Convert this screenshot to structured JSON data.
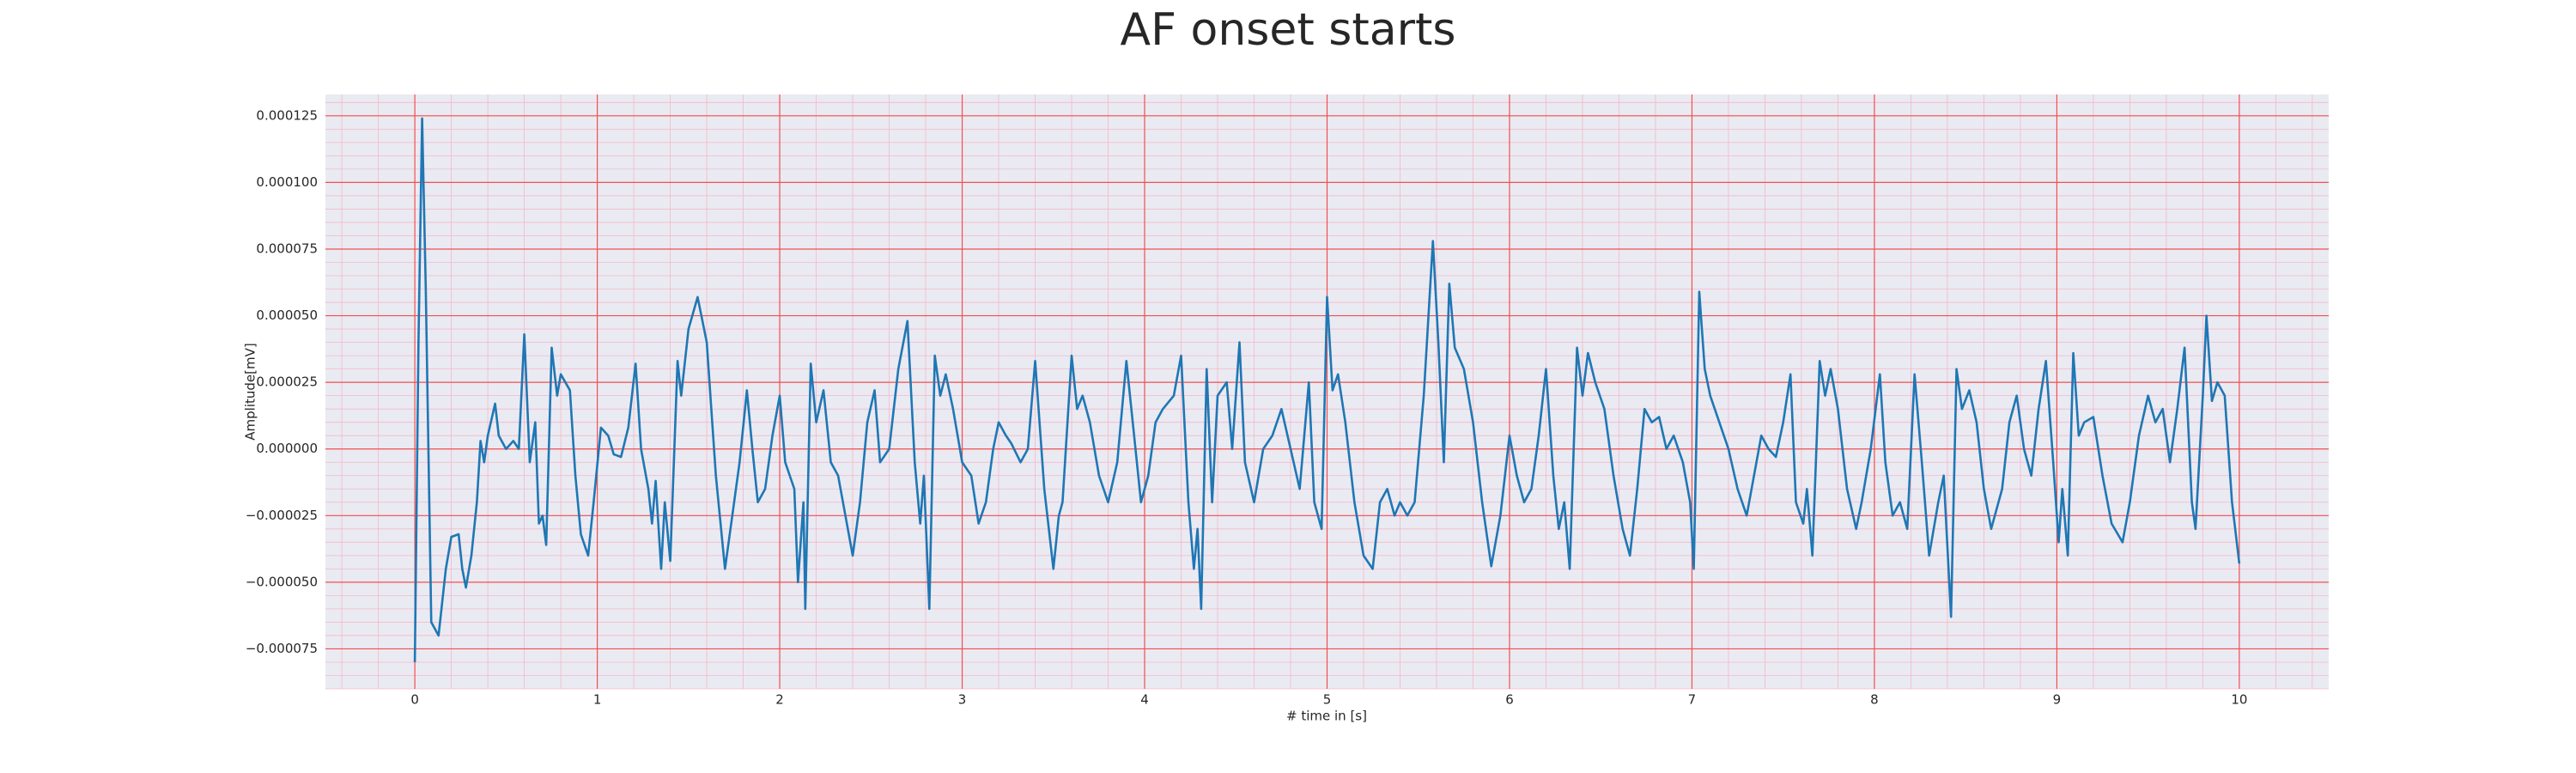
{
  "chart_data": {
    "type": "line",
    "title": "AF onset starts",
    "xlabel": "# time in [s]",
    "ylabel": "Amplitude[mV]",
    "color": "#1f77b4",
    "grid": true,
    "minor_grid": true,
    "xlim": [
      -0.49,
      10.49
    ],
    "ylim": [
      -9e-05,
      0.000133
    ],
    "xticks": [
      0,
      1,
      2,
      3,
      4,
      5,
      6,
      7,
      8,
      9,
      10
    ],
    "yticks": [
      {
        "value": -7.5e-05,
        "label": "−0.000075"
      },
      {
        "value": -5e-05,
        "label": "−0.000050"
      },
      {
        "value": -2.5e-05,
        "label": "−0.000025"
      },
      {
        "value": 0,
        "label": "0.000000"
      },
      {
        "value": 2.5e-05,
        "label": "0.000025"
      },
      {
        "value": 5e-05,
        "label": "0.000050"
      },
      {
        "value": 7.5e-05,
        "label": "0.000075"
      },
      {
        "value": 0.0001,
        "label": "0.000100"
      },
      {
        "value": 0.000125,
        "label": "0.000125"
      }
    ],
    "x": [
      0.0,
      0.02,
      0.04,
      0.06,
      0.09,
      0.13,
      0.17,
      0.2,
      0.24,
      0.26,
      0.28,
      0.31,
      0.34,
      0.36,
      0.38,
      0.4,
      0.44,
      0.46,
      0.5,
      0.54,
      0.57,
      0.6,
      0.63,
      0.66,
      0.68,
      0.7,
      0.72,
      0.75,
      0.78,
      0.8,
      0.85,
      0.88,
      0.91,
      0.95,
      0.98,
      1.02,
      1.06,
      1.09,
      1.13,
      1.17,
      1.21,
      1.24,
      1.28,
      1.3,
      1.32,
      1.35,
      1.37,
      1.4,
      1.44,
      1.46,
      1.5,
      1.55,
      1.6,
      1.65,
      1.7,
      1.74,
      1.78,
      1.82,
      1.85,
      1.88,
      1.92,
      1.96,
      2.0,
      2.03,
      2.08,
      2.1,
      2.13,
      2.14,
      2.17,
      2.2,
      2.24,
      2.28,
      2.32,
      2.36,
      2.4,
      2.44,
      2.48,
      2.52,
      2.55,
      2.6,
      2.65,
      2.7,
      2.74,
      2.77,
      2.79,
      2.82,
      2.85,
      2.88,
      2.91,
      2.95,
      3.0,
      3.05,
      3.09,
      3.13,
      3.17,
      3.2,
      3.24,
      3.27,
      3.32,
      3.36,
      3.4,
      3.45,
      3.5,
      3.53,
      3.55,
      3.6,
      3.63,
      3.66,
      3.7,
      3.75,
      3.8,
      3.85,
      3.9,
      3.95,
      3.98,
      4.02,
      4.06,
      4.1,
      4.16,
      4.2,
      4.24,
      4.27,
      4.29,
      4.31,
      4.34,
      4.37,
      4.4,
      4.45,
      4.48,
      4.52,
      4.55,
      4.6,
      4.65,
      4.7,
      4.75,
      4.8,
      4.85,
      4.9,
      4.93,
      4.97,
      5.0,
      5.03,
      5.06,
      5.1,
      5.15,
      5.2,
      5.25,
      5.29,
      5.33,
      5.37,
      5.4,
      5.44,
      5.48,
      5.53,
      5.58,
      5.61,
      5.64,
      5.67,
      5.7,
      5.75,
      5.8,
      5.85,
      5.9,
      5.95,
      6.0,
      6.04,
      6.08,
      6.12,
      6.16,
      6.2,
      6.24,
      6.27,
      6.3,
      6.33,
      6.37,
      6.4,
      6.43,
      6.47,
      6.52,
      6.57,
      6.62,
      6.66,
      6.7,
      6.74,
      6.78,
      6.82,
      6.86,
      6.9,
      6.95,
      6.99,
      7.01,
      7.04,
      7.07,
      7.1,
      7.15,
      7.2,
      7.25,
      7.3,
      7.34,
      7.38,
      7.42,
      7.46,
      7.5,
      7.54,
      7.57,
      7.61,
      7.63,
      7.66,
      7.7,
      7.73,
      7.76,
      7.8,
      7.85,
      7.9,
      7.93,
      7.98,
      8.03,
      8.06,
      8.1,
      8.14,
      8.18,
      8.22,
      8.26,
      8.3,
      8.35,
      8.38,
      8.42,
      8.45,
      8.48,
      8.52,
      8.56,
      8.6,
      8.64,
      8.7,
      8.74,
      8.78,
      8.82,
      8.86,
      8.9,
      8.94,
      8.98,
      9.01,
      9.03,
      9.06,
      9.09,
      9.12,
      9.15,
      9.2,
      9.25,
      9.3,
      9.36,
      9.4,
      9.45,
      9.5,
      9.54,
      9.58,
      9.62,
      9.66,
      9.7,
      9.74,
      9.76,
      9.8,
      9.82,
      9.85,
      9.88,
      9.92,
      9.96,
      10.0
    ],
    "values": [
      -8e-05,
      4e-05,
      0.000124,
      6e-05,
      -6.5e-05,
      -7e-05,
      -4.5e-05,
      -3.3e-05,
      -3.2e-05,
      -4.5e-05,
      -5.2e-05,
      -4e-05,
      -2e-05,
      3e-06,
      -5e-06,
      5e-06,
      1.7e-05,
      5e-06,
      0,
      3e-06,
      0,
      4.3e-05,
      -5e-06,
      1e-05,
      -2.8e-05,
      -2.5e-05,
      -3.6e-05,
      3.8e-05,
      2e-05,
      2.8e-05,
      2.2e-05,
      -1e-05,
      -3.2e-05,
      -4e-05,
      -2e-05,
      8e-06,
      5e-06,
      -2e-06,
      -3e-06,
      8e-06,
      3.2e-05,
      0,
      -1.5e-05,
      -2.8e-05,
      -1.2e-05,
      -4.5e-05,
      -2e-05,
      -4.2e-05,
      3.3e-05,
      2e-05,
      4.5e-05,
      5.7e-05,
      4e-05,
      -1e-05,
      -4.5e-05,
      -2.5e-05,
      -5e-06,
      2.2e-05,
      0,
      -2e-05,
      -1.5e-05,
      5e-06,
      2e-05,
      -5e-06,
      -1.5e-05,
      -5e-05,
      -2e-05,
      -6e-05,
      3.2e-05,
      1e-05,
      2.2e-05,
      -5e-06,
      -1e-05,
      -2.5e-05,
      -4e-05,
      -2e-05,
      1e-05,
      2.2e-05,
      -5e-06,
      0,
      3e-05,
      4.8e-05,
      -5e-06,
      -2.8e-05,
      -1e-05,
      -6e-05,
      3.5e-05,
      2e-05,
      2.8e-05,
      1.5e-05,
      -5e-06,
      -1e-05,
      -2.8e-05,
      -2e-05,
      0,
      1e-05,
      5e-06,
      2e-06,
      -5e-06,
      0,
      3.3e-05,
      -1.5e-05,
      -4.5e-05,
      -2.5e-05,
      -2e-05,
      3.5e-05,
      1.5e-05,
      2e-05,
      1e-05,
      -1e-05,
      -2e-05,
      -5e-06,
      3.3e-05,
      0,
      -2e-05,
      -1e-05,
      1e-05,
      1.5e-05,
      2e-05,
      3.5e-05,
      -2e-05,
      -4.5e-05,
      -3e-05,
      -6e-05,
      3e-05,
      -2e-05,
      2e-05,
      2.5e-05,
      0,
      4e-05,
      -5e-06,
      -2e-05,
      0,
      5e-06,
      1.5e-05,
      0,
      -1.5e-05,
      2.5e-05,
      -2e-05,
      -3e-05,
      5.7e-05,
      2.2e-05,
      2.8e-05,
      1e-05,
      -2e-05,
      -4e-05,
      -4.5e-05,
      -2e-05,
      -1.5e-05,
      -2.5e-05,
      -2e-05,
      -2.5e-05,
      -2e-05,
      2e-05,
      7.8e-05,
      4e-05,
      -5e-06,
      6.2e-05,
      3.8e-05,
      3e-05,
      1e-05,
      -2e-05,
      -4.4e-05,
      -2.5e-05,
      5e-06,
      -1e-05,
      -2e-05,
      -1.5e-05,
      5e-06,
      3e-05,
      -1e-05,
      -3e-05,
      -2e-05,
      -4.5e-05,
      3.8e-05,
      2e-05,
      3.6e-05,
      2.5e-05,
      1.5e-05,
      -1e-05,
      -3e-05,
      -4e-05,
      -1.5e-05,
      1.5e-05,
      1e-05,
      1.2e-05,
      0,
      5e-06,
      -5e-06,
      -2e-05,
      -4.5e-05,
      5.9e-05,
      3e-05,
      2e-05,
      1e-05,
      0,
      -1.5e-05,
      -2.5e-05,
      -1e-05,
      5e-06,
      0,
      -3e-06,
      1e-05,
      2.8e-05,
      -2e-05,
      -2.8e-05,
      -1.5e-05,
      -4e-05,
      3.3e-05,
      2e-05,
      3e-05,
      1.5e-05,
      -1.5e-05,
      -3e-05,
      -2e-05,
      0,
      2.8e-05,
      -5e-06,
      -2.5e-05,
      -2e-05,
      -3e-05,
      2.8e-05,
      -5e-06,
      -4e-05,
      -2e-05,
      -1e-05,
      -6.3e-05,
      3e-05,
      1.5e-05,
      2.2e-05,
      1e-05,
      -1.5e-05,
      -3e-05,
      -1.5e-05,
      1e-05,
      2e-05,
      0,
      -1e-05,
      1.5e-05,
      3.3e-05,
      -5e-06,
      -3.5e-05,
      -1.5e-05,
      -4e-05,
      3.6e-05,
      5e-06,
      1e-05,
      1.2e-05,
      -1e-05,
      -2.8e-05,
      -3.5e-05,
      -2e-05,
      5e-06,
      2e-05,
      1e-05,
      1.5e-05,
      -5e-06,
      1.5e-05,
      3.8e-05,
      -2e-05,
      -3e-05,
      2e-05,
      5e-05,
      1.8e-05,
      2.5e-05,
      2e-05,
      -2e-05,
      -4.3e-05
    ]
  }
}
